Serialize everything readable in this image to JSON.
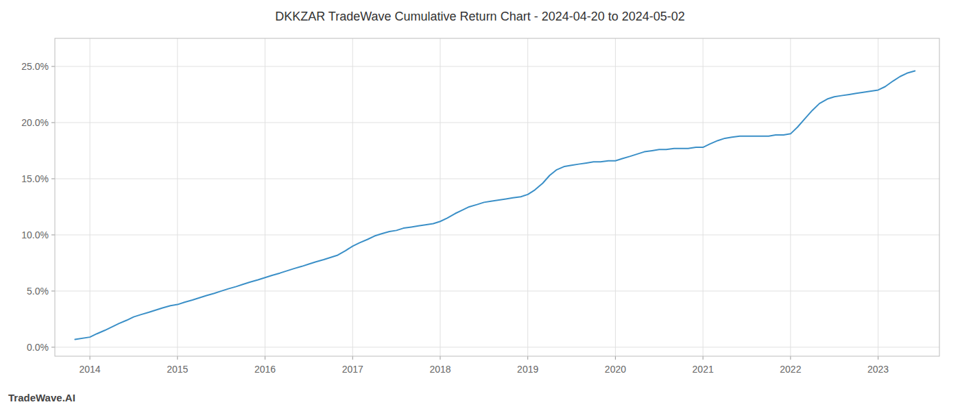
{
  "chart_data": {
    "type": "line",
    "title": "DKKZAR TradeWave Cumulative Return Chart - 2024-04-20 to 2024-05-02",
    "annotations": [
      "TradeWave.AI"
    ],
    "color": "#3a8fc7",
    "grid": true,
    "xlim": [
      2013.6,
      2023.7
    ],
    "xticks": [
      2014,
      2015,
      2016,
      2017,
      2018,
      2019,
      2020,
      2021,
      2022,
      2023
    ],
    "ylim": [
      -0.008,
      0.275
    ],
    "yticks": [
      {
        "value": 0.0,
        "label": "0.0%"
      },
      {
        "value": 0.05,
        "label": "5.0%"
      },
      {
        "value": 0.1,
        "label": "10.0%"
      },
      {
        "value": 0.15,
        "label": "15.0%"
      },
      {
        "value": 0.2,
        "label": "20.0%"
      },
      {
        "value": 0.25,
        "label": "25.0%"
      }
    ],
    "x": [
      2013.83,
      2014.0,
      2014.08,
      2014.17,
      2014.25,
      2014.33,
      2014.42,
      2014.5,
      2014.58,
      2014.67,
      2014.75,
      2014.83,
      2014.92,
      2015.0,
      2015.08,
      2015.17,
      2015.25,
      2015.33,
      2015.42,
      2015.5,
      2015.58,
      2015.67,
      2015.75,
      2015.83,
      2015.92,
      2016.0,
      2016.08,
      2016.17,
      2016.25,
      2016.33,
      2016.42,
      2016.5,
      2016.58,
      2016.67,
      2016.75,
      2016.83,
      2016.92,
      2017.0,
      2017.08,
      2017.17,
      2017.25,
      2017.33,
      2017.42,
      2017.5,
      2017.58,
      2017.67,
      2017.75,
      2017.83,
      2017.92,
      2018.0,
      2018.08,
      2018.17,
      2018.25,
      2018.33,
      2018.42,
      2018.5,
      2018.58,
      2018.67,
      2018.75,
      2018.83,
      2018.92,
      2019.0,
      2019.08,
      2019.17,
      2019.25,
      2019.33,
      2019.42,
      2019.5,
      2019.58,
      2019.67,
      2019.75,
      2019.83,
      2019.92,
      2020.0,
      2020.08,
      2020.17,
      2020.25,
      2020.33,
      2020.42,
      2020.5,
      2020.58,
      2020.67,
      2020.75,
      2020.83,
      2020.92,
      2021.0,
      2021.08,
      2021.17,
      2021.25,
      2021.33,
      2021.42,
      2021.5,
      2021.58,
      2021.67,
      2021.75,
      2021.83,
      2021.92,
      2022.0,
      2022.08,
      2022.17,
      2022.25,
      2022.33,
      2022.42,
      2022.5,
      2022.58,
      2022.67,
      2022.75,
      2022.83,
      2022.92,
      2023.0,
      2023.08,
      2023.17,
      2023.25,
      2023.33,
      2023.42
    ],
    "values": [
      0.007,
      0.009,
      0.012,
      0.015,
      0.018,
      0.021,
      0.024,
      0.027,
      0.029,
      0.031,
      0.033,
      0.035,
      0.037,
      0.038,
      0.04,
      0.042,
      0.044,
      0.046,
      0.048,
      0.05,
      0.052,
      0.054,
      0.056,
      0.058,
      0.06,
      0.062,
      0.064,
      0.066,
      0.068,
      0.07,
      0.072,
      0.074,
      0.076,
      0.078,
      0.08,
      0.082,
      0.086,
      0.09,
      0.093,
      0.096,
      0.099,
      0.101,
      0.103,
      0.104,
      0.106,
      0.107,
      0.108,
      0.109,
      0.11,
      0.112,
      0.115,
      0.119,
      0.122,
      0.125,
      0.127,
      0.129,
      0.13,
      0.131,
      0.132,
      0.133,
      0.134,
      0.136,
      0.14,
      0.146,
      0.153,
      0.158,
      0.161,
      0.162,
      0.163,
      0.164,
      0.165,
      0.165,
      0.166,
      0.166,
      0.168,
      0.17,
      0.172,
      0.174,
      0.175,
      0.176,
      0.176,
      0.177,
      0.177,
      0.177,
      0.178,
      0.178,
      0.181,
      0.184,
      0.186,
      0.187,
      0.188,
      0.188,
      0.188,
      0.188,
      0.188,
      0.189,
      0.189,
      0.19,
      0.196,
      0.204,
      0.211,
      0.217,
      0.221,
      0.223,
      0.224,
      0.225,
      0.226,
      0.227,
      0.228,
      0.229,
      0.232,
      0.237,
      0.241,
      0.244,
      0.246
    ]
  }
}
